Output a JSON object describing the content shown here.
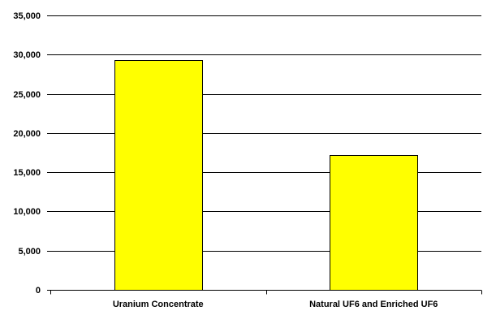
{
  "colors": {
    "bar_fill": "#ffff00",
    "gridline": "#000000",
    "background": "#ffffff"
  },
  "chart_data": {
    "type": "bar",
    "title": "",
    "xlabel": "",
    "ylabel": "",
    "categories": [
      "Uranium Concentrate",
      "Natural UF6 and Enriched UF6"
    ],
    "values": [
      29300,
      17200
    ],
    "ylim": [
      0,
      35000
    ],
    "yticks": [
      0,
      5000,
      10000,
      15000,
      20000,
      25000,
      30000,
      35000
    ],
    "ytick_labels": [
      "0",
      "5,000",
      "10,000",
      "15,000",
      "20,000",
      "25,000",
      "30,000",
      "35,000"
    ],
    "grid": true,
    "legend": "none"
  }
}
